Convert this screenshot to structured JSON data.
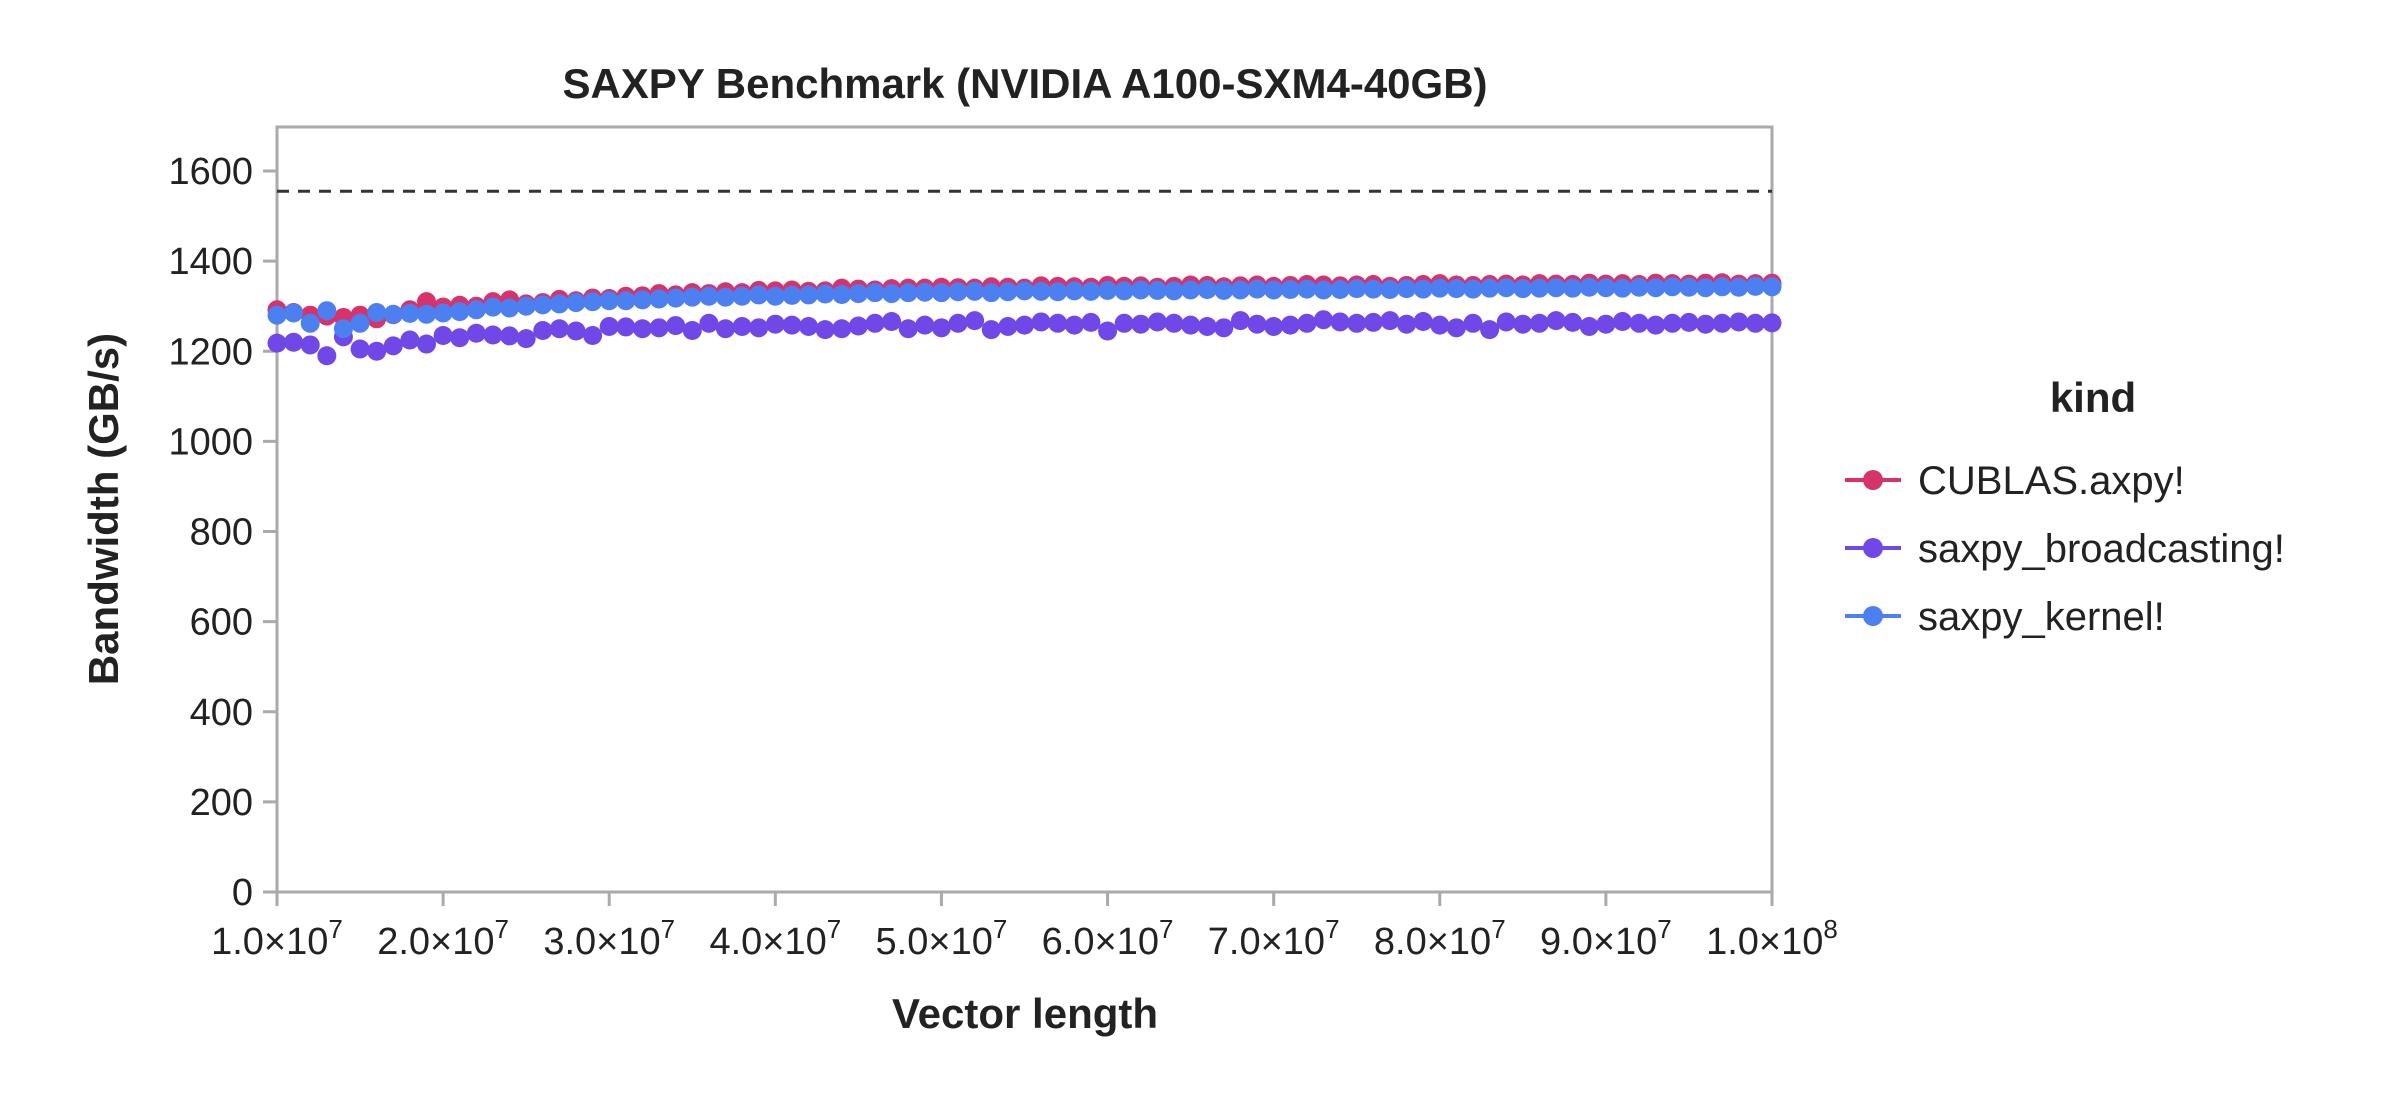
{
  "chart_data": {
    "type": "scatter",
    "title": "SAXPY Benchmark (NVIDIA A100-SXM4-40GB)",
    "xlabel": "Vector length",
    "ylabel": "Bandwidth (GB/s)",
    "xlim": [
      10000000,
      100000000
    ],
    "ylim": [
      0,
      1700
    ],
    "x_ticks": [
      10000000,
      20000000,
      30000000,
      40000000,
      50000000,
      60000000,
      70000000,
      80000000,
      90000000,
      100000000
    ],
    "x_tick_labels": [
      {
        "mantissa": "1.0×10",
        "exp": "7"
      },
      {
        "mantissa": "2.0×10",
        "exp": "7"
      },
      {
        "mantissa": "3.0×10",
        "exp": "7"
      },
      {
        "mantissa": "4.0×10",
        "exp": "7"
      },
      {
        "mantissa": "5.0×10",
        "exp": "7"
      },
      {
        "mantissa": "6.0×10",
        "exp": "7"
      },
      {
        "mantissa": "7.0×10",
        "exp": "7"
      },
      {
        "mantissa": "8.0×10",
        "exp": "7"
      },
      {
        "mantissa": "9.0×10",
        "exp": "7"
      },
      {
        "mantissa": "1.0×10",
        "exp": "8"
      }
    ],
    "y_ticks": [
      0,
      200,
      400,
      600,
      800,
      1000,
      1200,
      1400,
      1600
    ],
    "y_tick_labels": [
      "0",
      "200",
      "400",
      "600",
      "800",
      "1000",
      "1200",
      "1400",
      "1600"
    ],
    "reference_line": {
      "y": 1555,
      "style": "dashed",
      "color": "#333333"
    },
    "grid": false,
    "legend": {
      "title": "kind",
      "placement": "right"
    },
    "series": [
      {
        "name": "CUBLAS.axpy!",
        "color": "#d6336c",
        "start": 10000000,
        "step": 1000000,
        "values": [
          1292,
          1286,
          1280,
          1278,
          1275,
          1280,
          1272,
          1281,
          1292,
          1310,
          1298,
          1302,
          1300,
          1310,
          1314,
          1305,
          1308,
          1315,
          1312,
          1318,
          1317,
          1322,
          1323,
          1328,
          1325,
          1330,
          1328,
          1332,
          1330,
          1335,
          1334,
          1336,
          1333,
          1334,
          1340,
          1338,
          1336,
          1339,
          1340,
          1340,
          1342,
          1341,
          1340,
          1343,
          1342,
          1340,
          1345,
          1344,
          1343,
          1342,
          1346,
          1344,
          1345,
          1342,
          1344,
          1347,
          1346,
          1343,
          1345,
          1347,
          1344,
          1346,
          1348,
          1347,
          1345,
          1347,
          1348,
          1344,
          1346,
          1348,
          1350,
          1347,
          1346,
          1348,
          1349,
          1347,
          1350,
          1349,
          1348,
          1351,
          1349,
          1350,
          1348,
          1351,
          1350,
          1349,
          1351,
          1352,
          1349,
          1350,
          1351
        ]
      },
      {
        "name": "saxpy_broadcasting!",
        "color": "#7048e8",
        "start": 10000000,
        "step": 1000000,
        "values": [
          1218,
          1220,
          1214,
          1190,
          1232,
          1205,
          1200,
          1212,
          1225,
          1216,
          1235,
          1230,
          1240,
          1236,
          1234,
          1228,
          1246,
          1250,
          1245,
          1235,
          1255,
          1254,
          1250,
          1252,
          1257,
          1246,
          1262,
          1250,
          1255,
          1252,
          1260,
          1258,
          1255,
          1248,
          1250,
          1256,
          1262,
          1266,
          1250,
          1258,
          1252,
          1262,
          1268,
          1248,
          1255,
          1258,
          1265,
          1262,
          1258,
          1264,
          1245,
          1262,
          1260,
          1265,
          1262,
          1258,
          1255,
          1252,
          1268,
          1260,
          1255,
          1258,
          1262,
          1270,
          1265,
          1262,
          1264,
          1268,
          1260,
          1266,
          1258,
          1252,
          1262,
          1248,
          1265,
          1260,
          1262,
          1268,
          1264,
          1255,
          1260,
          1266,
          1262,
          1258,
          1262,
          1264,
          1260,
          1262,
          1265,
          1262,
          1263
        ]
      },
      {
        "name": "saxpy_kernel!",
        "color": "#4c7ff0",
        "start": 10000000,
        "step": 1000000,
        "values": [
          1280,
          1285,
          1262,
          1290,
          1250,
          1262,
          1286,
          1282,
          1284,
          1282,
          1285,
          1288,
          1292,
          1298,
          1296,
          1300,
          1303,
          1305,
          1308,
          1310,
          1312,
          1312,
          1314,
          1316,
          1318,
          1320,
          1322,
          1320,
          1322,
          1325,
          1322,
          1324,
          1325,
          1327,
          1326,
          1328,
          1330,
          1328,
          1330,
          1331,
          1330,
          1332,
          1333,
          1330,
          1332,
          1334,
          1333,
          1332,
          1334,
          1333,
          1335,
          1334,
          1336,
          1335,
          1334,
          1336,
          1337,
          1335,
          1336,
          1338,
          1336,
          1337,
          1338,
          1336,
          1337,
          1339,
          1338,
          1337,
          1339,
          1338,
          1340,
          1339,
          1338,
          1340,
          1341,
          1339,
          1340,
          1341,
          1340,
          1342,
          1341,
          1340,
          1342,
          1341,
          1343,
          1342,
          1341,
          1343,
          1342,
          1344,
          1343
        ]
      }
    ]
  }
}
